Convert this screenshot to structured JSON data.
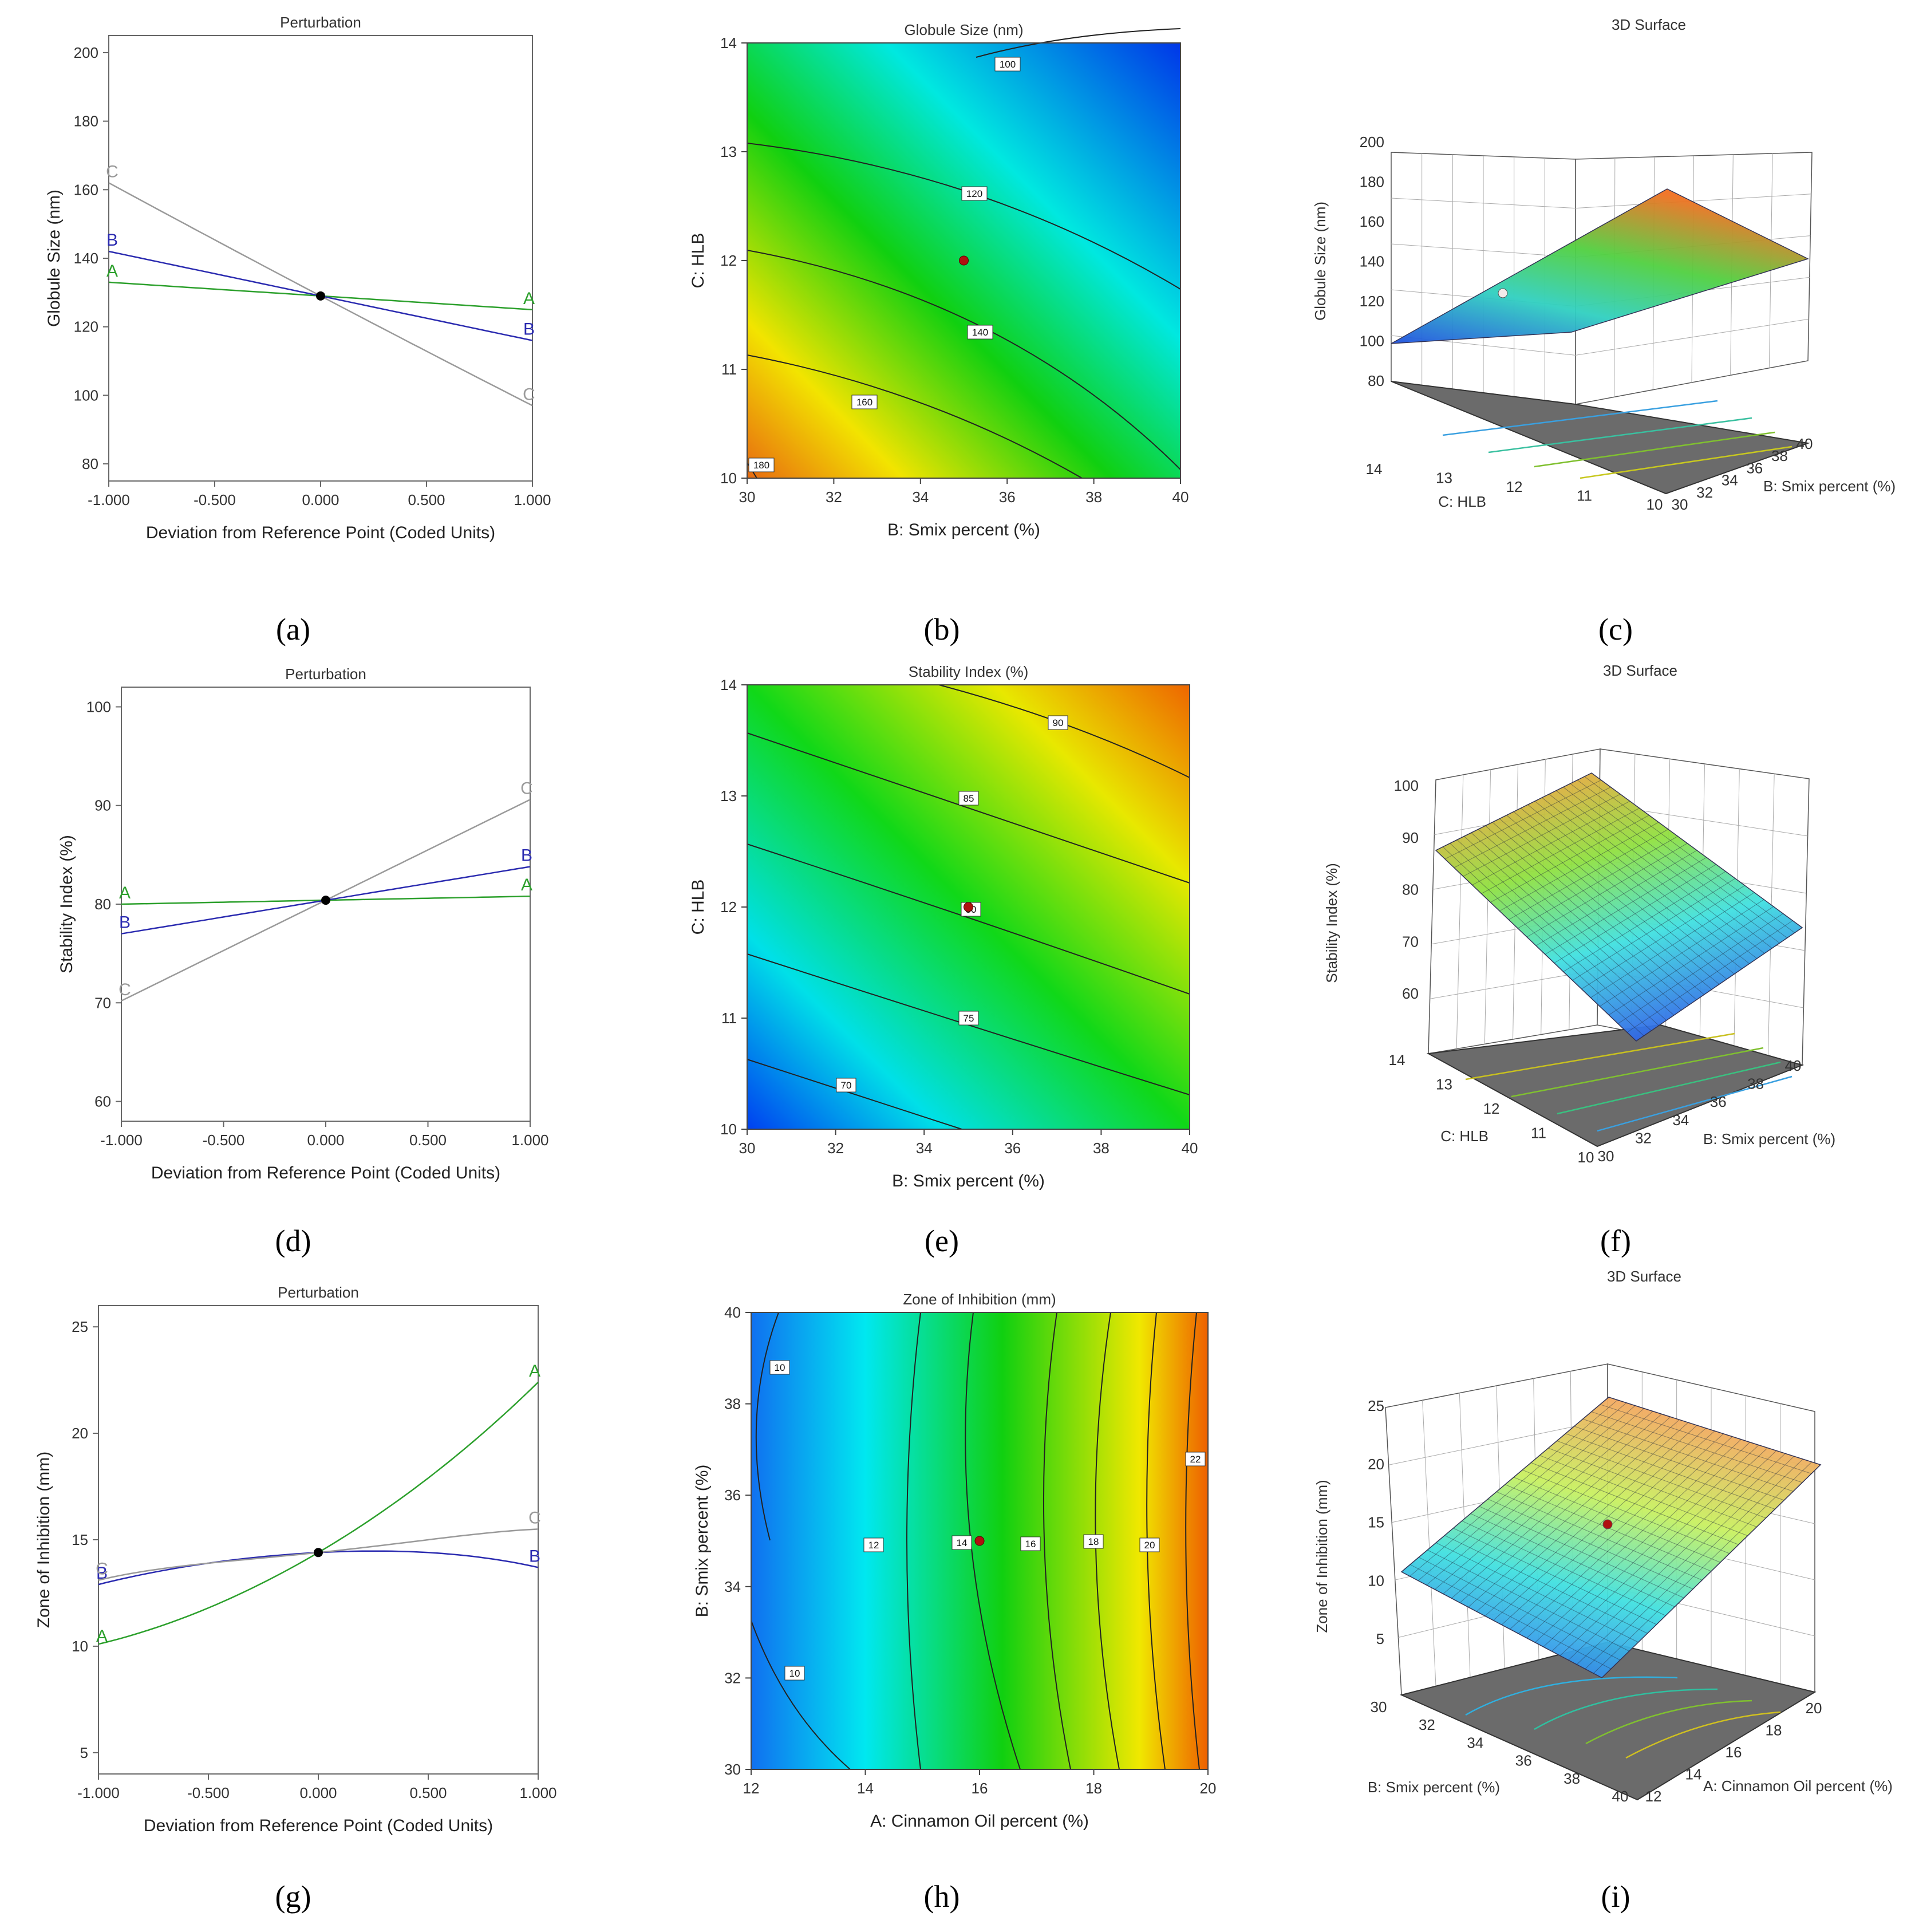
{
  "figure_labels": [
    "(a)",
    "(b)",
    "(c)",
    "(d)",
    "(e)",
    "(f)",
    "(g)",
    "(h)",
    "(i)"
  ],
  "colors": {
    "A": "#2ca02c",
    "B": "#2b2bb0",
    "C": "#9a9a9a"
  },
  "chart_data": [
    {
      "id": "a",
      "type": "line",
      "title": "Perturbation",
      "xlabel": "Deviation from Reference Point (Coded Units)",
      "ylabel": "Globule Size (nm)",
      "xlim": [
        -1.0,
        1.0
      ],
      "ylim": [
        75,
        205
      ],
      "xticks": [
        "-1.000",
        "-0.500",
        "0.000",
        "0.500",
        "1.000"
      ],
      "yticks": [
        "80",
        "100",
        "120",
        "140",
        "160",
        "180",
        "200"
      ],
      "ref_point": [
        0,
        129
      ],
      "series": [
        {
          "name": "A",
          "x": [
            -1,
            0,
            1
          ],
          "y": [
            133,
            129,
            125
          ]
        },
        {
          "name": "B",
          "x": [
            -1,
            0,
            1
          ],
          "y": [
            142,
            129,
            116
          ]
        },
        {
          "name": "C",
          "x": [
            -1,
            0,
            1
          ],
          "y": [
            162,
            129,
            97
          ]
        }
      ]
    },
    {
      "id": "b",
      "type": "contour",
      "title": "Globule Size (nm)",
      "xlabel": "B: Smix percent (%)",
      "ylabel": "C: HLB",
      "xlim": [
        30,
        40
      ],
      "ylim": [
        10,
        14
      ],
      "xticks": [
        "30",
        "32",
        "34",
        "36",
        "38",
        "40"
      ],
      "yticks": [
        "10",
        "11",
        "12",
        "13",
        "14"
      ],
      "contour_levels": [
        "100",
        "120",
        "140",
        "160",
        "180"
      ],
      "design_point": [
        35,
        12
      ]
    },
    {
      "id": "c",
      "type": "surface",
      "title": "3D Surface",
      "zlabel": "Globule Size (nm)",
      "xlabel": "B: Smix percent (%)",
      "ylabel": "C: HLB",
      "zticks": [
        "80",
        "100",
        "120",
        "140",
        "160",
        "180",
        "200"
      ],
      "xticks": [
        "30",
        "32",
        "34",
        "36",
        "38",
        "40"
      ],
      "yticks": [
        "10",
        "11",
        "12",
        "13",
        "14"
      ]
    },
    {
      "id": "d",
      "type": "line",
      "title": "Perturbation",
      "xlabel": "Deviation from Reference Point (Coded Units)",
      "ylabel": "Stability Index (%)",
      "xlim": [
        -1.0,
        1.0
      ],
      "ylim": [
        58,
        102
      ],
      "xticks": [
        "-1.000",
        "-0.500",
        "0.000",
        "0.500",
        "1.000"
      ],
      "yticks": [
        "60",
        "70",
        "80",
        "90",
        "100"
      ],
      "ref_point": [
        0,
        80.4
      ],
      "series": [
        {
          "name": "A",
          "x": [
            -1,
            0,
            1
          ],
          "y": [
            80.0,
            80.4,
            80.8
          ]
        },
        {
          "name": "B",
          "x": [
            -1,
            0,
            1
          ],
          "y": [
            77.0,
            80.4,
            83.8
          ]
        },
        {
          "name": "C",
          "x": [
            -1,
            0,
            1
          ],
          "y": [
            70.2,
            80.4,
            90.6
          ]
        }
      ]
    },
    {
      "id": "e",
      "type": "contour",
      "title": "Stability Index (%)",
      "xlabel": "B: Smix percent (%)",
      "ylabel": "C: HLB",
      "xlim": [
        30,
        40
      ],
      "ylim": [
        10,
        14
      ],
      "xticks": [
        "30",
        "32",
        "34",
        "36",
        "38",
        "40"
      ],
      "yticks": [
        "10",
        "11",
        "12",
        "13",
        "14"
      ],
      "contour_levels": [
        "70",
        "75",
        "80",
        "85",
        "90"
      ],
      "design_point": [
        35,
        12
      ]
    },
    {
      "id": "f",
      "type": "surface",
      "title": "3D Surface",
      "zlabel": "Stability Index (%)",
      "xlabel": "B: Smix percent (%)",
      "ylabel": "C: HLB",
      "zticks": [
        "60",
        "70",
        "80",
        "90",
        "100"
      ],
      "xticks": [
        "30",
        "32",
        "34",
        "36",
        "38",
        "40"
      ],
      "yticks": [
        "10",
        "11",
        "12",
        "13",
        "14"
      ]
    },
    {
      "id": "g",
      "type": "line",
      "title": "Perturbation",
      "xlabel": "Deviation from Reference Point (Coded Units)",
      "ylabel": "Zone of Inhibition (mm)",
      "xlim": [
        -1.0,
        1.0
      ],
      "ylim": [
        4,
        26
      ],
      "xticks": [
        "-1.000",
        "-0.500",
        "0.000",
        "0.500",
        "1.000"
      ],
      "yticks": [
        "5",
        "10",
        "15",
        "20",
        "25"
      ],
      "ref_point": [
        0,
        14.4
      ],
      "series": [
        {
          "name": "A",
          "x": [
            -1,
            -0.5,
            0,
            0.5,
            1
          ],
          "y": [
            10.1,
            11.8,
            14.4,
            17.9,
            22.4
          ]
        },
        {
          "name": "B",
          "x": [
            -1,
            -0.5,
            0,
            0.5,
            1
          ],
          "y": [
            12.9,
            13.9,
            14.4,
            14.4,
            13.7
          ]
        },
        {
          "name": "C",
          "x": [
            -1,
            -0.5,
            0,
            0.5,
            1
          ],
          "y": [
            13.1,
            13.9,
            14.4,
            15.0,
            15.5
          ]
        }
      ]
    },
    {
      "id": "h",
      "type": "contour",
      "title": "Zone of Inhibition (mm)",
      "xlabel": "A: Cinnamon Oil percent (%)",
      "ylabel": "B: Smix percent (%)",
      "xlim": [
        12,
        20
      ],
      "ylim": [
        30,
        40
      ],
      "xticks": [
        "12",
        "14",
        "16",
        "18",
        "20"
      ],
      "yticks": [
        "30",
        "32",
        "34",
        "36",
        "38",
        "40"
      ],
      "contour_levels": [
        "10",
        "10",
        "12",
        "14",
        "16",
        "18",
        "20",
        "22"
      ],
      "design_point": [
        16,
        35
      ]
    },
    {
      "id": "i",
      "type": "surface",
      "title": "3D Surface",
      "zlabel": "Zone of Inhibition (mm)",
      "xlabel": "A: Cinnamon Oil percent (%)",
      "ylabel": "B: Smix percent (%)",
      "zticks": [
        "5",
        "10",
        "15",
        "20",
        "25"
      ],
      "xticks": [
        "12",
        "14",
        "16",
        "18",
        "20"
      ],
      "yticks": [
        "30",
        "32",
        "34",
        "36",
        "38",
        "40"
      ]
    }
  ]
}
